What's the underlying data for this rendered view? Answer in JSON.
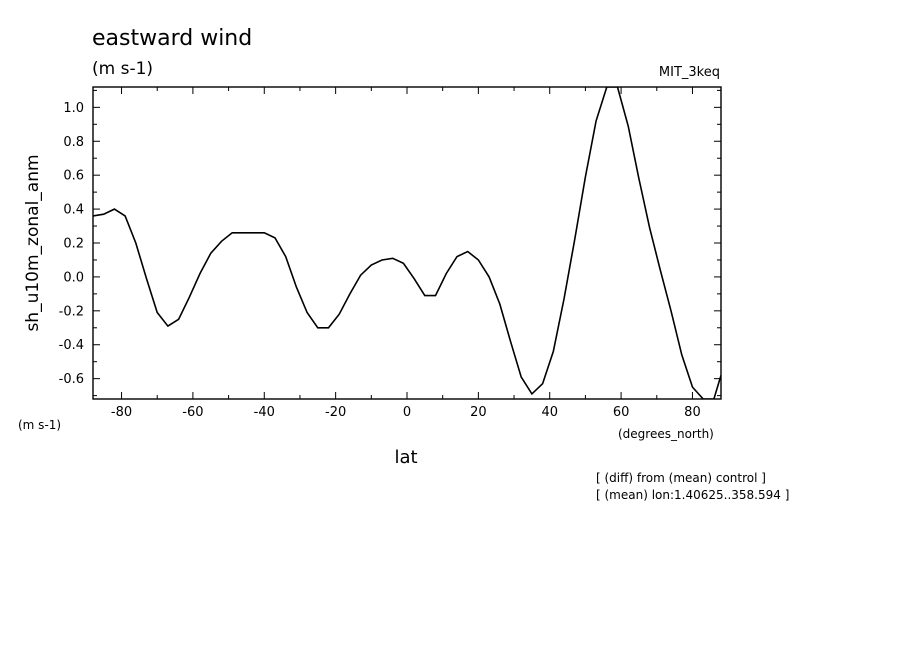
{
  "chart_data": {
    "type": "line",
    "title": "eastward wind",
    "subtitle": "(m s-1)",
    "model_label": "MIT_3keq",
    "ylabel": "sh_u10m_zonal_anm",
    "y_unit_label": "(m s-1)",
    "xlabel": "lat",
    "x_unit_label": "(degrees_north)",
    "notes": [
      "[ (diff) from (mean) control ]",
      "[ (mean) lon:1.40625..358.594 ]"
    ],
    "xlim": [
      -88,
      88
    ],
    "ylim": [
      -0.72,
      1.12
    ],
    "x_ticks": [
      -80,
      -60,
      -40,
      -20,
      0,
      20,
      40,
      60,
      80
    ],
    "x_tick_labels": [
      "-80",
      "-60",
      "-40",
      "-20",
      "0",
      "20",
      "40",
      "60",
      "80"
    ],
    "y_ticks": [
      -0.6,
      -0.4,
      -0.2,
      0.0,
      0.2,
      0.4,
      0.6,
      0.8,
      1.0
    ],
    "y_tick_labels": [
      "-0.6",
      "-0.4",
      "-0.2",
      "0.0",
      "0.2",
      "0.4",
      "0.6",
      "0.8",
      "1.0"
    ],
    "grid": false,
    "series": [
      {
        "x": [
          -88,
          -85,
          -82,
          -79,
          -76,
          -73,
          -70,
          -67,
          -64,
          -61,
          -58,
          -55,
          -52,
          -49,
          -46,
          -43,
          -40,
          -37,
          -34,
          -31,
          -28,
          -25,
          -22,
          -19,
          -16,
          -13,
          -10,
          -7,
          -4,
          -1,
          2,
          5,
          8,
          11,
          14,
          17,
          20,
          23,
          26,
          29,
          32,
          35,
          38,
          41,
          44,
          47,
          50,
          53,
          56,
          59,
          62,
          65,
          68,
          71,
          74,
          77,
          80,
          83,
          86,
          88
        ],
        "y": [
          0.36,
          0.37,
          0.4,
          0.36,
          0.2,
          -0.01,
          -0.21,
          -0.29,
          -0.25,
          -0.12,
          0.02,
          0.14,
          0.21,
          0.26,
          0.26,
          0.26,
          0.26,
          0.23,
          0.12,
          -0.06,
          -0.21,
          -0.3,
          -0.3,
          -0.22,
          -0.1,
          0.01,
          0.07,
          0.1,
          0.11,
          0.08,
          -0.01,
          -0.11,
          -0.11,
          0.02,
          0.12,
          0.15,
          0.1,
          0.0,
          -0.16,
          -0.38,
          -0.59,
          -0.69,
          -0.63,
          -0.44,
          -0.13,
          0.22,
          0.59,
          0.92,
          1.12,
          1.12,
          0.89,
          0.58,
          0.29,
          0.04,
          -0.2,
          -0.46,
          -0.65,
          -0.72,
          -0.72,
          -0.58
        ]
      }
    ]
  }
}
